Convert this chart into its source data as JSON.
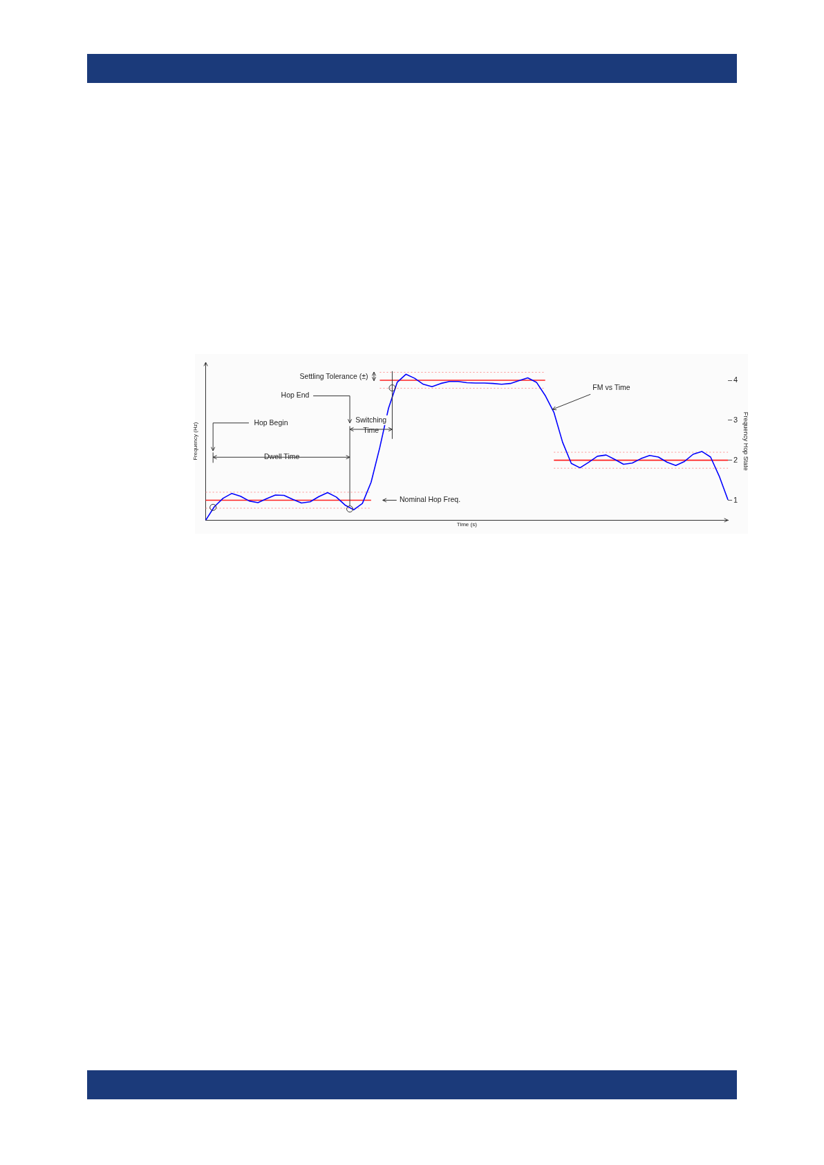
{
  "chart_data": {
    "type": "line",
    "xlabel": "Time (s)",
    "ylabel": "Frequency Hop State",
    "y2label": "Frequency (Hz)",
    "categories": [
      null,
      null,
      null,
      null,
      null,
      null,
      null,
      null,
      null,
      null,
      null,
      null,
      null,
      null,
      null,
      null,
      null,
      null,
      null,
      null,
      null,
      null,
      null,
      null,
      null,
      null,
      null,
      null,
      null,
      null,
      null,
      null,
      null,
      null,
      null,
      null,
      null,
      null,
      null,
      null,
      null,
      null,
      null,
      null,
      null,
      null,
      null,
      null,
      null,
      null,
      null,
      null,
      null,
      null,
      null,
      null,
      null,
      null,
      null,
      null,
      null
    ],
    "series": [
      {
        "color": "#0000ff",
        "line_style": "solid",
        "values": [
          0.5,
          0.84,
          1.05,
          1.17,
          1.1,
          0.98,
          0.94,
          1.04,
          1.13,
          1.12,
          1.02,
          0.93,
          0.96,
          1.09,
          1.19,
          1.08,
          0.88,
          0.76,
          0.92,
          1.45,
          2.32,
          3.3,
          3.95,
          4.15,
          4.05,
          3.9,
          3.84,
          3.92,
          3.97,
          3.97,
          3.94,
          3.93,
          3.93,
          3.92,
          3.9,
          3.92,
          3.99,
          4.06,
          3.95,
          3.62,
          3.2,
          2.45,
          1.92,
          1.81,
          1.95,
          2.1,
          2.13,
          2.02,
          1.9,
          1.93,
          2.04,
          2.12,
          2.08,
          1.95,
          1.87,
          1.97,
          2.15,
          2.22,
          2.08,
          1.6,
          1.01
        ]
      },
      {
        "color": "#ff2020",
        "line_style": "solid",
        "values": [
          1,
          1,
          1,
          1,
          1,
          1,
          1,
          1,
          1,
          1,
          1,
          1,
          1,
          1,
          1,
          1,
          1,
          1,
          1,
          1,
          4,
          4,
          4,
          4,
          4,
          4,
          4,
          4,
          4,
          4,
          4,
          4,
          4,
          4,
          4,
          4,
          4,
          4,
          4,
          4,
          2,
          2,
          2,
          2,
          2,
          2,
          2,
          2,
          2,
          2,
          2,
          2,
          2,
          2,
          2,
          2,
          2,
          2,
          2,
          2,
          2
        ]
      },
      {
        "color": "#ff9090",
        "line_style": "dotted",
        "values": [
          1.2,
          1.2,
          1.2,
          1.2,
          1.2,
          1.2,
          1.2,
          1.2,
          1.2,
          1.2,
          1.2,
          1.2,
          1.2,
          1.2,
          1.2,
          1.2,
          1.2,
          1.2,
          1.2,
          1.2,
          4.2,
          4.2,
          4.2,
          4.2,
          4.2,
          4.2,
          4.2,
          4.2,
          4.2,
          4.2,
          4.2,
          4.2,
          4.2,
          4.2,
          4.2,
          4.2,
          4.2,
          4.2,
          4.2,
          4.2,
          2.2,
          2.2,
          2.2,
          2.2,
          2.2,
          2.2,
          2.2,
          2.2,
          2.2,
          2.2,
          2.2,
          2.2,
          2.2,
          2.2,
          2.2,
          2.2,
          2.2,
          2.2,
          2.2,
          2.2,
          2.2
        ]
      },
      {
        "color": "#ff9090",
        "line_style": "dotted",
        "values": [
          0.8,
          0.8,
          0.8,
          0.8,
          0.8,
          0.8,
          0.8,
          0.8,
          0.8,
          0.8,
          0.8,
          0.8,
          0.8,
          0.8,
          0.8,
          0.8,
          0.8,
          0.8,
          0.8,
          0.8,
          3.8,
          3.8,
          3.8,
          3.8,
          3.8,
          3.8,
          3.8,
          3.8,
          3.8,
          3.8,
          3.8,
          3.8,
          3.8,
          3.8,
          3.8,
          3.8,
          3.8,
          3.8,
          3.8,
          3.8,
          1.8,
          1.8,
          1.8,
          1.8,
          1.8,
          1.8,
          1.8,
          1.8,
          1.8,
          1.8,
          1.8,
          1.8,
          1.8,
          1.8,
          1.8,
          1.8,
          1.8,
          1.8,
          1.8,
          1.8,
          1.8
        ]
      }
    ],
    "ylim": [
      0.5,
      4.45
    ],
    "yticks": [
      1,
      2,
      3,
      4
    ],
    "grid": false,
    "legend": false,
    "marker": "none",
    "annotations": [
      "Settling Tolerance (±)",
      "Hop End",
      "Hop Begin",
      "Dwell Time",
      "Switching\nTime",
      "Nominal Hop Freq.",
      "FM vs Time"
    ]
  }
}
